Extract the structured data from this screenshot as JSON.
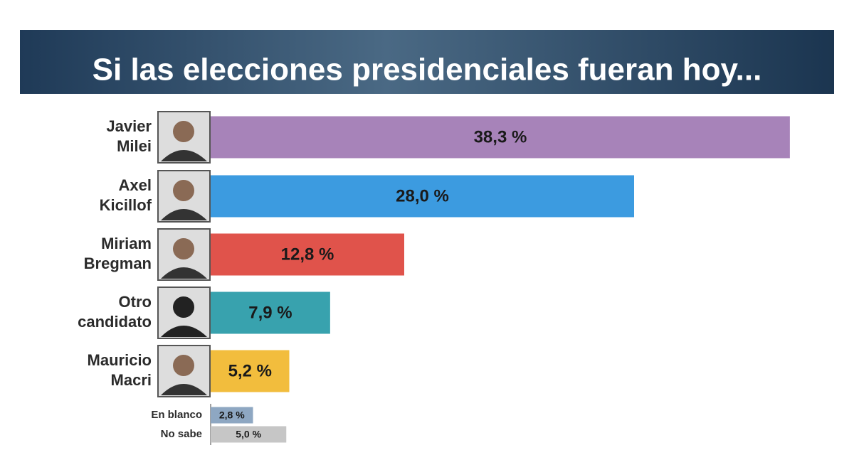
{
  "chart_data": {
    "type": "bar",
    "orientation": "horizontal",
    "title": "Si las elecciones presidenciales fueran hoy...",
    "categories": [
      "Javier Milei",
      "Axel Kicillof",
      "Miriam Bregman",
      "Otro candidato",
      "Mauricio Macri",
      "En blanco",
      "No sabe"
    ],
    "values": [
      38.3,
      28.0,
      12.8,
      7.9,
      5.2,
      2.8,
      5.0
    ],
    "value_labels": [
      "38,3 %",
      "28,0 %",
      "12,8 %",
      "7,9 %",
      "5,2 %",
      "2,8 %",
      "5,0 %"
    ],
    "colors": [
      "#a783b9",
      "#3c9be0",
      "#e0534b",
      "#38a2ae",
      "#f2bd3d",
      "#8ea7c2",
      "#c6c6c6"
    ]
  }
}
